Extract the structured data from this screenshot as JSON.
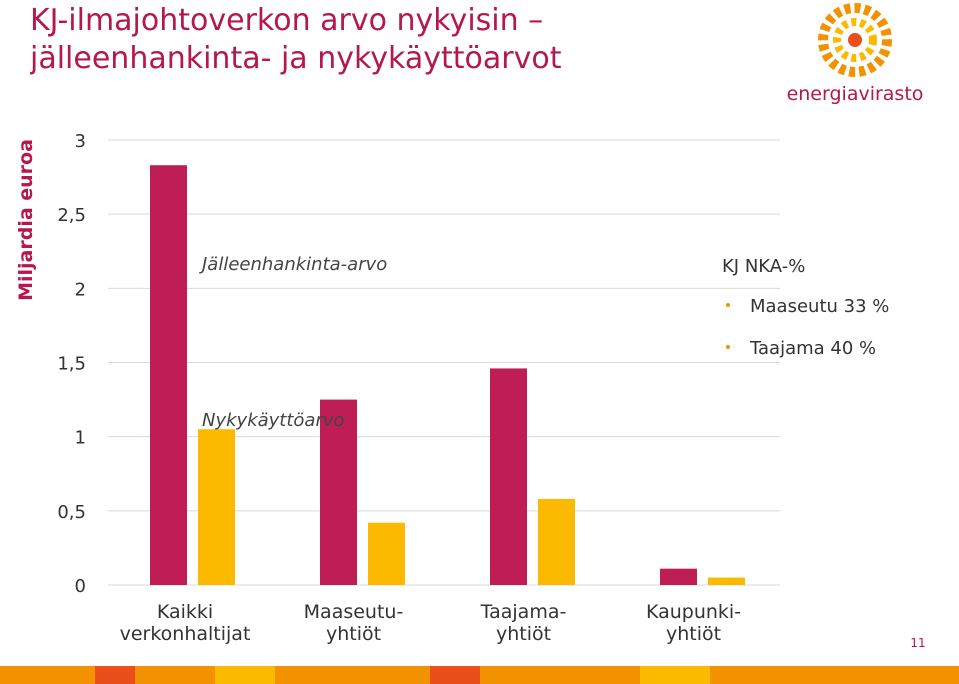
{
  "slide": {
    "title": "KJ-ilmajohtoverkon arvo nykyisin – jälleenhankinta- ja nykykäyttöarvot",
    "logo_text": "energiavirasto",
    "page_number": 11,
    "notes": {
      "heading": "KJ NKA-%",
      "items": [
        "Maaseutu 33 %",
        "Taajama 40 %"
      ]
    }
  },
  "chart_data": {
    "type": "bar",
    "y_label": "Miljardia euroa",
    "categories": [
      "Kaikki verkonhaltijat",
      "Maaseutu-yhtiöt",
      "Taajama-yhtiöt",
      "Kaupunki-yhtiöt"
    ],
    "series": [
      {
        "name": "Jälleenhankinta-arvo",
        "color": "#be1e55",
        "values": [
          2.83,
          1.25,
          1.46,
          0.11
        ]
      },
      {
        "name": "Nykykäyttöarvo",
        "color": "#fbb900",
        "values": [
          1.05,
          0.42,
          0.58,
          0.05
        ]
      }
    ],
    "ylim": [
      0,
      3
    ],
    "yticks": [
      0,
      {
        "value": 0.5,
        "label": "0,5"
      },
      1,
      {
        "value": 1.5,
        "label": "1,5"
      },
      2,
      {
        "value": 2.5,
        "label": "2,5"
      },
      3
    ],
    "grid": true
  }
}
